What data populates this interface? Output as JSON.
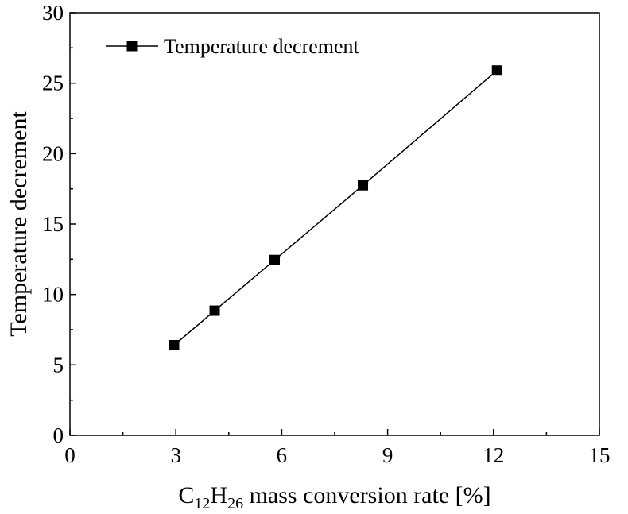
{
  "chart_data": {
    "type": "line",
    "xlabel": {
      "prefix": "C",
      "sub1": "12",
      "mid": "H",
      "sub2": "26",
      "suffix": " mass conversion rate [%]"
    },
    "ylabel": "Temperature decrement",
    "xlim": [
      0,
      15
    ],
    "ylim": [
      0,
      30
    ],
    "xticks": [
      "0",
      "3",
      "6",
      "9",
      "12",
      "15"
    ],
    "yticks": [
      "0",
      "5",
      "10",
      "15",
      "20",
      "25",
      "30"
    ],
    "grid": false,
    "legend_position": "top-left",
    "marker": "square",
    "line_color": "#000000",
    "series": [
      {
        "name": "Temperature decrement",
        "points": [
          {
            "x": 2.95,
            "y": 6.4
          },
          {
            "x": 4.1,
            "y": 8.85
          },
          {
            "x": 5.8,
            "y": 12.45
          },
          {
            "x": 8.3,
            "y": 17.75
          },
          {
            "x": 12.1,
            "y": 25.9
          }
        ]
      }
    ]
  }
}
